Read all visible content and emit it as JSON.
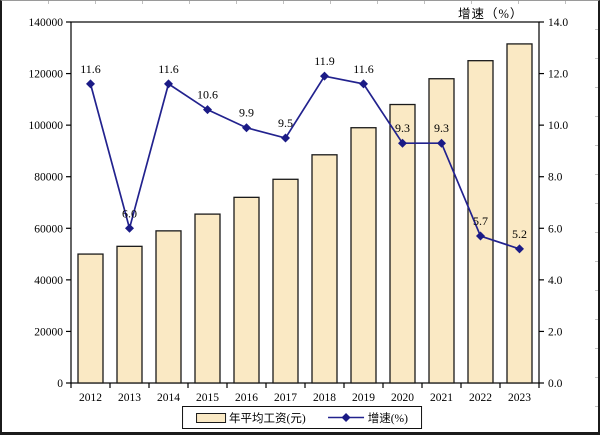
{
  "chart_data": {
    "type": "bar",
    "subtype": "bar+line combo, dual axis",
    "title": "",
    "right_axis_title": "增速（%）",
    "categories": [
      "2012",
      "2013",
      "2014",
      "2015",
      "2016",
      "2017",
      "2018",
      "2019",
      "2020",
      "2021",
      "2022",
      "2023"
    ],
    "series": [
      {
        "name": "年平均工资(元)",
        "type": "bar",
        "axis": "left",
        "values": [
          50000,
          53000,
          59000,
          65500,
          72000,
          79000,
          88500,
          99000,
          108000,
          118000,
          125000,
          131500
        ]
      },
      {
        "name": "增速(%)",
        "type": "line",
        "axis": "right",
        "values": [
          11.6,
          6.0,
          11.6,
          10.6,
          9.9,
          9.5,
          11.9,
          11.6,
          9.3,
          9.3,
          5.7,
          5.2
        ],
        "point_labels": [
          "11.6",
          "6.0",
          "11.6",
          "10.6",
          "9.9",
          "9.5",
          "11.9",
          "11.6",
          "9.3",
          "9.3",
          "5.7",
          "5.2"
        ]
      }
    ],
    "left_axis": {
      "min": 0,
      "max": 140000,
      "step": 20000,
      "tick_labels": [
        "0",
        "20000",
        "40000",
        "60000",
        "80000",
        "100000",
        "120000",
        "140000"
      ]
    },
    "right_axis": {
      "min": 0,
      "max": 14,
      "step": 2,
      "tick_labels": [
        "0.0",
        "2.0",
        "4.0",
        "6.0",
        "8.0",
        "10.0",
        "12.0",
        "14.0"
      ]
    },
    "legend": {
      "position": "bottom",
      "entries": [
        "年平均工资(元)",
        "增速(%)"
      ]
    },
    "grid": false,
    "colors": {
      "bar_fill": "#FAE9C4",
      "bar_border": "#1a1a1a",
      "line": "#22228E",
      "marker": "#1B1B86",
      "text": "#000000",
      "plot_background": "#FFFFFF"
    }
  }
}
